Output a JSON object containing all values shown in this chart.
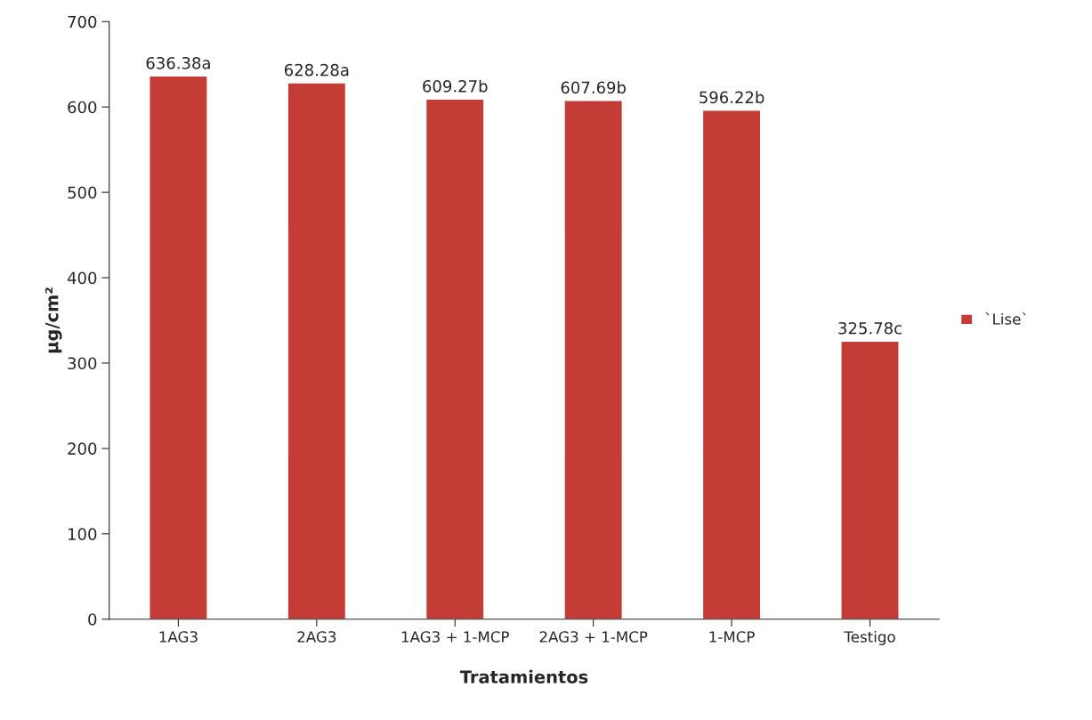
{
  "chart_data": {
    "type": "bar",
    "xlabel": "Tratamientos",
    "ylabel": "µg/cm²",
    "categories": [
      "1AG3",
      "2AG3",
      "1AG3 + 1-MCP",
      "2AG3 + 1-MCP",
      "1-MCP",
      "Testigo"
    ],
    "series": [
      {
        "name": "`Lise`",
        "color": "#c43c36",
        "values": [
          636.38,
          628.28,
          609.27,
          607.69,
          596.22,
          325.78
        ],
        "value_labels": [
          "636.38a",
          "628.28a",
          "609.27b",
          "607.69b",
          "596.22b",
          "325.78c"
        ]
      }
    ],
    "ylim": [
      0,
      700
    ],
    "yticks": [
      0,
      100,
      200,
      300,
      400,
      500,
      600,
      700
    ],
    "grid": false,
    "legend": "right"
  }
}
